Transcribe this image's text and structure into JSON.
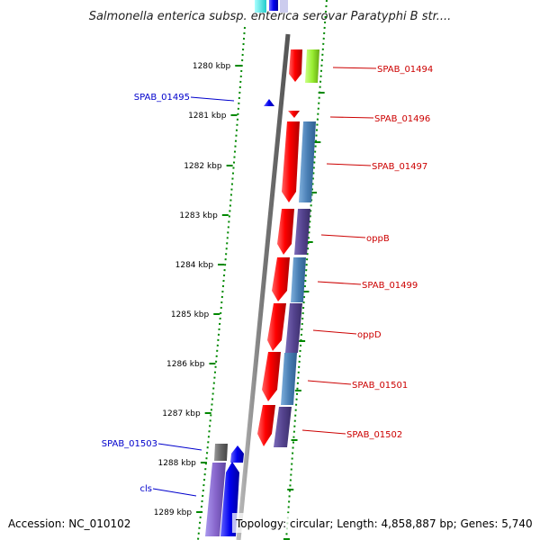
{
  "title": "Salmonella enterica subsp. enterica serovar Paratyphi B str....",
  "footer": {
    "accession": "Accession: NC_010102",
    "summary": "Topology: circular; Length: 4,858,887 bp; Genes: 5,740"
  },
  "ticks": [
    {
      "label": "1280 kbp"
    },
    {
      "label": "1281 kbp"
    },
    {
      "label": "1282 kbp"
    },
    {
      "label": "1283 kbp"
    },
    {
      "label": "1284 kbp"
    },
    {
      "label": "1285 kbp"
    },
    {
      "label": "1286 kbp"
    },
    {
      "label": "1287 kbp"
    },
    {
      "label": "1288 kbp"
    },
    {
      "label": "1289 kbp"
    }
  ],
  "genes_right": [
    {
      "name": "SPAB_01494",
      "color": "#cc0000"
    },
    {
      "name": "SPAB_01496",
      "color": "#cc0000"
    },
    {
      "name": "SPAB_01497",
      "color": "#cc0000"
    },
    {
      "name": "oppB",
      "color": "#cc0000"
    },
    {
      "name": "SPAB_01499",
      "color": "#cc0000"
    },
    {
      "name": "oppD",
      "color": "#cc0000"
    },
    {
      "name": "SPAB_01501",
      "color": "#cc0000"
    },
    {
      "name": "SPAB_01502",
      "color": "#cc0000"
    }
  ],
  "genes_left": [
    {
      "name": "SPAB_01495",
      "color": "#0000cc"
    },
    {
      "name": "SPAB_01503",
      "color": "#0000cc"
    },
    {
      "name": "cls",
      "color": "#0000cc"
    }
  ],
  "colors": {
    "forward_cds": "#ee0000",
    "reverse_cds": "#0000ee",
    "backbone": "#888888",
    "tick": "#008800",
    "cog_blue": "#4a7fb5",
    "cog_purple": "#55448f",
    "cog_green": "#99ee33",
    "cog_lavender": "#8866cc",
    "cog_grey": "#666666"
  }
}
